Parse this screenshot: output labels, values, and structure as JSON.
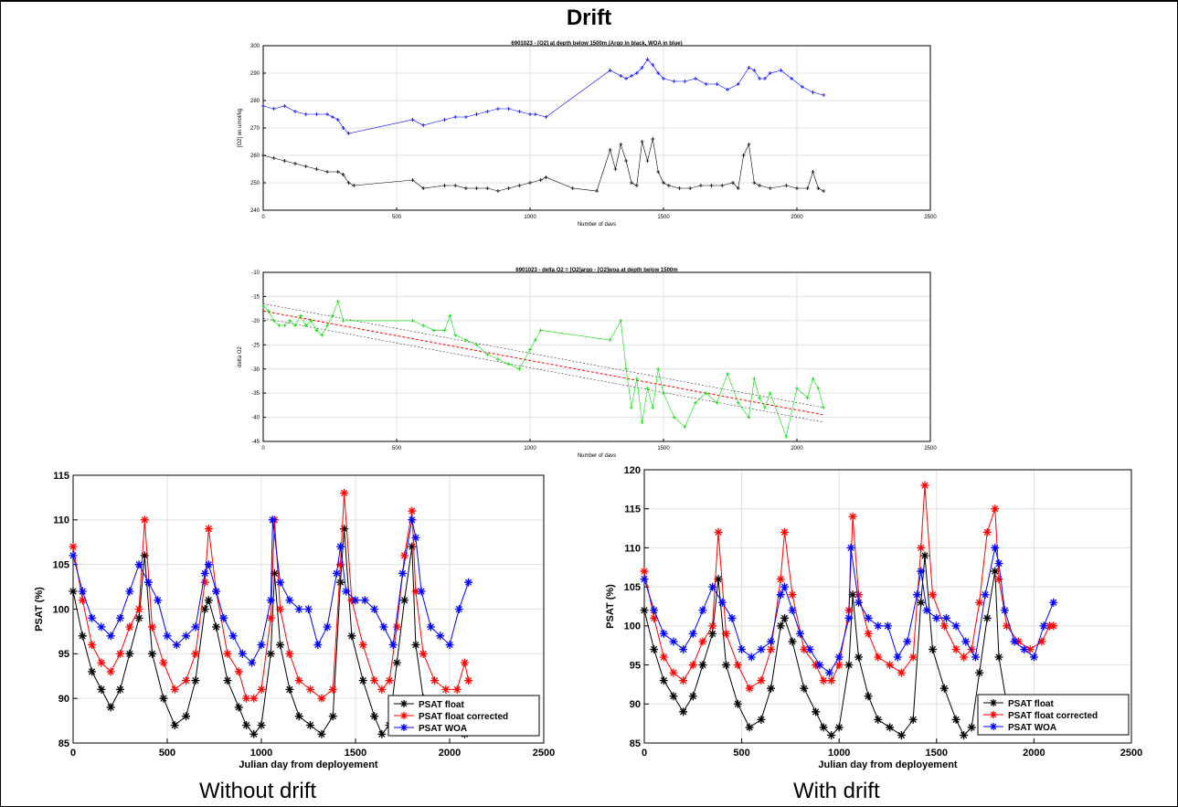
{
  "page": {
    "title": "Drift",
    "caption_left": "Without drift",
    "caption_right": "With drift"
  },
  "colors": {
    "float": "#000000",
    "corrected": "#ff0000",
    "woa": "#0000ff",
    "delta": "#00e000",
    "fit": "#ff0000"
  },
  "chart_data": [
    {
      "type": "scatter",
      "title": "6901023 - [O2] at depth below 1500m (Argo in black, WOA in blue)",
      "xlabel": "Number of days",
      "ylabel": "[O2] en umol/kg",
      "xlim": [
        0,
        2500
      ],
      "ylim": [
        240,
        300
      ],
      "xticks": [
        0,
        500,
        1000,
        1500,
        2000,
        2500
      ],
      "yticks": [
        240,
        250,
        260,
        270,
        280,
        290,
        300
      ],
      "grid": true,
      "series": [
        {
          "color": "#0000ff",
          "x": [
            0,
            40,
            80,
            120,
            160,
            200,
            240,
            260,
            280,
            300,
            320,
            560,
            600,
            680,
            720,
            760,
            800,
            840,
            880,
            920,
            960,
            1000,
            1020,
            1060,
            1300,
            1340,
            1360,
            1380,
            1400,
            1420,
            1440,
            1460,
            1480,
            1500,
            1540,
            1580,
            1620,
            1660,
            1700,
            1740,
            1780,
            1820,
            1840,
            1860,
            1880,
            1900,
            1940,
            1980,
            2020,
            2060,
            2100
          ],
          "y": [
            278,
            277,
            278,
            276,
            275,
            275,
            275,
            274,
            273,
            270,
            268,
            273,
            271,
            273,
            274,
            274,
            275,
            276,
            277,
            277,
            276,
            275,
            275,
            274,
            291,
            289,
            288,
            289,
            290,
            292,
            295,
            293,
            290,
            288,
            287,
            287,
            288,
            286,
            286,
            284,
            286,
            292,
            291,
            288,
            288,
            290,
            291,
            288,
            285,
            283,
            282
          ]
        },
        {
          "color": "#000000",
          "x": [
            0,
            40,
            80,
            120,
            160,
            200,
            240,
            280,
            300,
            320,
            340,
            560,
            600,
            680,
            720,
            760,
            800,
            840,
            880,
            920,
            960,
            1000,
            1040,
            1060,
            1160,
            1250,
            1300,
            1320,
            1340,
            1360,
            1380,
            1400,
            1420,
            1440,
            1460,
            1480,
            1500,
            1520,
            1560,
            1600,
            1640,
            1680,
            1720,
            1760,
            1780,
            1800,
            1820,
            1840,
            1860,
            1900,
            1960,
            2000,
            2040,
            2060,
            2080,
            2100
          ],
          "y": [
            260,
            259,
            258,
            257,
            256,
            255,
            254,
            254,
            253,
            250,
            249,
            251,
            248,
            249,
            249,
            248,
            248,
            248,
            247,
            248,
            249,
            250,
            251,
            252,
            248,
            247,
            262,
            255,
            264,
            258,
            250,
            249,
            265,
            258,
            266,
            254,
            250,
            249,
            248,
            248,
            249,
            249,
            249,
            250,
            248,
            260,
            264,
            250,
            249,
            248,
            249,
            248,
            248,
            254,
            248,
            247
          ]
        }
      ]
    },
    {
      "type": "scatter",
      "title": "6901023 - delta O2 = [O2]argo - [O2]woa at depth below 1500m",
      "xlabel": "Number of days",
      "ylabel": "delta O2",
      "xlim": [
        0,
        2500
      ],
      "ylim": [
        -45,
        -10
      ],
      "xticks": [
        0,
        500,
        1000,
        1500,
        2000,
        2500
      ],
      "yticks": [
        -45,
        -40,
        -35,
        -30,
        -25,
        -20,
        -15,
        -10
      ],
      "grid": true,
      "fit": {
        "x": [
          0,
          2100
        ],
        "y": [
          -18,
          -39.5
        ]
      },
      "series": [
        {
          "color": "#00e000",
          "x": [
            0,
            20,
            40,
            60,
            80,
            100,
            120,
            140,
            160,
            180,
            200,
            220,
            240,
            260,
            280,
            300,
            560,
            600,
            640,
            680,
            700,
            720,
            760,
            800,
            840,
            880,
            920,
            960,
            1000,
            1020,
            1040,
            1300,
            1340,
            1360,
            1380,
            1400,
            1420,
            1440,
            1460,
            1480,
            1500,
            1540,
            1580,
            1620,
            1660,
            1700,
            1740,
            1780,
            1820,
            1840,
            1860,
            1880,
            1900,
            1960,
            2000,
            2040,
            2060,
            2080,
            2100
          ],
          "y": [
            -17,
            -18,
            -20,
            -21,
            -21,
            -20,
            -21,
            -19,
            -21,
            -20,
            -22,
            -23,
            -21,
            -19,
            -16,
            -20,
            -20,
            -21,
            -22,
            -22,
            -19,
            -23,
            -24,
            -25,
            -27,
            -28,
            -29,
            -30,
            -26,
            -24,
            -22,
            -24,
            -20,
            -30,
            -38,
            -32,
            -41,
            -34,
            -38,
            -30,
            -35,
            -40,
            -42,
            -37,
            -35,
            -37,
            -31,
            -37,
            -40,
            -32,
            -36,
            -38,
            -35,
            -44,
            -34,
            -36,
            -32,
            -34,
            -38
          ]
        }
      ]
    },
    {
      "type": "line",
      "title": "",
      "xlabel": "Julian day from deployement",
      "ylabel": "PSAT (%)",
      "xlim": [
        0,
        2500
      ],
      "ylim": [
        85,
        115
      ],
      "xticks": [
        0,
        500,
        1000,
        1500,
        2000,
        2500
      ],
      "yticks": [
        85,
        90,
        95,
        100,
        105,
        110,
        115
      ],
      "grid": true,
      "legend_placement": "bottom-right",
      "series": [
        {
          "name": "PSAT float",
          "color": "#000000",
          "x": [
            0,
            50,
            100,
            150,
            200,
            250,
            300,
            350,
            380,
            420,
            480,
            540,
            600,
            650,
            700,
            720,
            760,
            820,
            880,
            920,
            960,
            1000,
            1050,
            1070,
            1100,
            1150,
            1200,
            1260,
            1320,
            1380,
            1420,
            1440,
            1480,
            1540,
            1600,
            1640,
            1680,
            1720,
            1760,
            1800,
            1820,
            1860,
            1920,
            1980,
            2040,
            2080,
            2100
          ],
          "y": [
            102,
            97,
            93,
            91,
            89,
            91,
            95,
            99,
            106,
            95,
            90,
            87,
            88,
            92,
            100,
            101,
            98,
            92,
            89,
            87,
            86,
            87,
            95,
            104,
            96,
            91,
            88,
            87,
            86,
            88,
            103,
            109,
            97,
            92,
            88,
            86,
            87,
            94,
            101,
            107,
            96,
            90,
            88,
            87,
            87,
            86,
            87
          ]
        },
        {
          "name": "PSAT float corrected",
          "color": "#ff0000",
          "x": [
            0,
            50,
            100,
            150,
            200,
            250,
            300,
            350,
            380,
            420,
            480,
            540,
            600,
            650,
            700,
            720,
            760,
            820,
            880,
            920,
            960,
            1000,
            1050,
            1070,
            1100,
            1150,
            1200,
            1260,
            1320,
            1380,
            1420,
            1440,
            1480,
            1540,
            1600,
            1640,
            1680,
            1720,
            1760,
            1800,
            1820,
            1860,
            1920,
            1980,
            2040,
            2080,
            2100
          ],
          "y": [
            107,
            101,
            96,
            94,
            93,
            95,
            98,
            100,
            110,
            98,
            94,
            91,
            92,
            95,
            103,
            109,
            102,
            95,
            93,
            90,
            90,
            91,
            99,
            110,
            100,
            95,
            92,
            91,
            90,
            91,
            105,
            113,
            101,
            96,
            92,
            91,
            92,
            98,
            106,
            111,
            102,
            95,
            92,
            91,
            91,
            94,
            92
          ]
        },
        {
          "name": "PSAT WOA",
          "color": "#0000ff",
          "x": [
            0,
            50,
            100,
            150,
            200,
            250,
            300,
            350,
            400,
            450,
            500,
            550,
            600,
            650,
            700,
            720,
            760,
            800,
            850,
            900,
            950,
            1000,
            1050,
            1060,
            1100,
            1150,
            1200,
            1250,
            1300,
            1350,
            1400,
            1420,
            1450,
            1500,
            1550,
            1600,
            1650,
            1700,
            1750,
            1800,
            1820,
            1850,
            1900,
            1950,
            2000,
            2050,
            2100
          ],
          "y": [
            106,
            102,
            99,
            98,
            97,
            99,
            102,
            105,
            103,
            101,
            97,
            96,
            97,
            98,
            104,
            105,
            102,
            99,
            97,
            95,
            94,
            96,
            101,
            110,
            103,
            101,
            100,
            100,
            96,
            98,
            104,
            107,
            102,
            101,
            101,
            100,
            98,
            96,
            104,
            110,
            108,
            102,
            98,
            97,
            96,
            100,
            103
          ]
        }
      ]
    },
    {
      "type": "line",
      "title": "",
      "xlabel": "Julian day from deployement",
      "ylabel": "PSAT (%)",
      "xlim": [
        0,
        2500
      ],
      "ylim": [
        85,
        120
      ],
      "xticks": [
        0,
        500,
        1000,
        1500,
        2000,
        2500
      ],
      "yticks": [
        85,
        90,
        95,
        100,
        105,
        110,
        115,
        120
      ],
      "grid": true,
      "legend_placement": "bottom-right",
      "series": [
        {
          "name": "PSAT float",
          "color": "#000000",
          "x": [
            0,
            50,
            100,
            150,
            200,
            250,
            300,
            350,
            380,
            420,
            480,
            540,
            600,
            650,
            700,
            720,
            760,
            820,
            880,
            920,
            960,
            1000,
            1050,
            1070,
            1100,
            1150,
            1200,
            1260,
            1320,
            1380,
            1420,
            1440,
            1480,
            1540,
            1600,
            1640,
            1680,
            1720,
            1760,
            1800,
            1820,
            1860,
            1900
          ],
          "y": [
            102,
            97,
            93,
            91,
            89,
            91,
            95,
            99,
            106,
            95,
            90,
            87,
            88,
            92,
            100,
            101,
            98,
            92,
            89,
            87,
            86,
            87,
            95,
            104,
            96,
            91,
            88,
            87,
            86,
            88,
            103,
            109,
            97,
            92,
            88,
            86,
            87,
            94,
            101,
            107,
            96,
            90,
            88
          ]
        },
        {
          "name": "PSAT float corrected",
          "color": "#ff0000",
          "x": [
            0,
            50,
            100,
            150,
            200,
            250,
            300,
            350,
            380,
            420,
            480,
            540,
            600,
            650,
            700,
            720,
            760,
            820,
            880,
            920,
            960,
            1000,
            1050,
            1070,
            1100,
            1150,
            1200,
            1260,
            1320,
            1380,
            1420,
            1440,
            1480,
            1540,
            1600,
            1640,
            1680,
            1720,
            1760,
            1800,
            1820,
            1860,
            1920,
            1980,
            2040,
            2080,
            2100
          ],
          "y": [
            107,
            101,
            96,
            94,
            93,
            95,
            98,
            100,
            112,
            99,
            95,
            92,
            93,
            97,
            106,
            112,
            104,
            97,
            95,
            93,
            93,
            95,
            102,
            114,
            104,
            99,
            96,
            95,
            94,
            96,
            110,
            118,
            104,
            100,
            97,
            96,
            97,
            103,
            112,
            115,
            106,
            100,
            98,
            97,
            98,
            100,
            100
          ]
        },
        {
          "name": "PSAT WOA",
          "color": "#0000ff",
          "x": [
            0,
            50,
            100,
            150,
            200,
            250,
            300,
            350,
            400,
            450,
            500,
            550,
            600,
            650,
            700,
            720,
            760,
            800,
            850,
            900,
            950,
            1000,
            1050,
            1060,
            1100,
            1150,
            1200,
            1250,
            1300,
            1350,
            1400,
            1420,
            1450,
            1500,
            1550,
            1600,
            1650,
            1700,
            1750,
            1800,
            1820,
            1850,
            1900,
            1950,
            2000,
            2050,
            2100
          ],
          "y": [
            106,
            102,
            99,
            98,
            97,
            99,
            102,
            105,
            103,
            101,
            97,
            96,
            97,
            98,
            104,
            105,
            102,
            99,
            97,
            95,
            94,
            96,
            101,
            110,
            103,
            101,
            100,
            100,
            96,
            98,
            104,
            107,
            102,
            101,
            101,
            100,
            98,
            96,
            104,
            110,
            108,
            102,
            98,
            97,
            96,
            100,
            103
          ]
        }
      ]
    }
  ]
}
